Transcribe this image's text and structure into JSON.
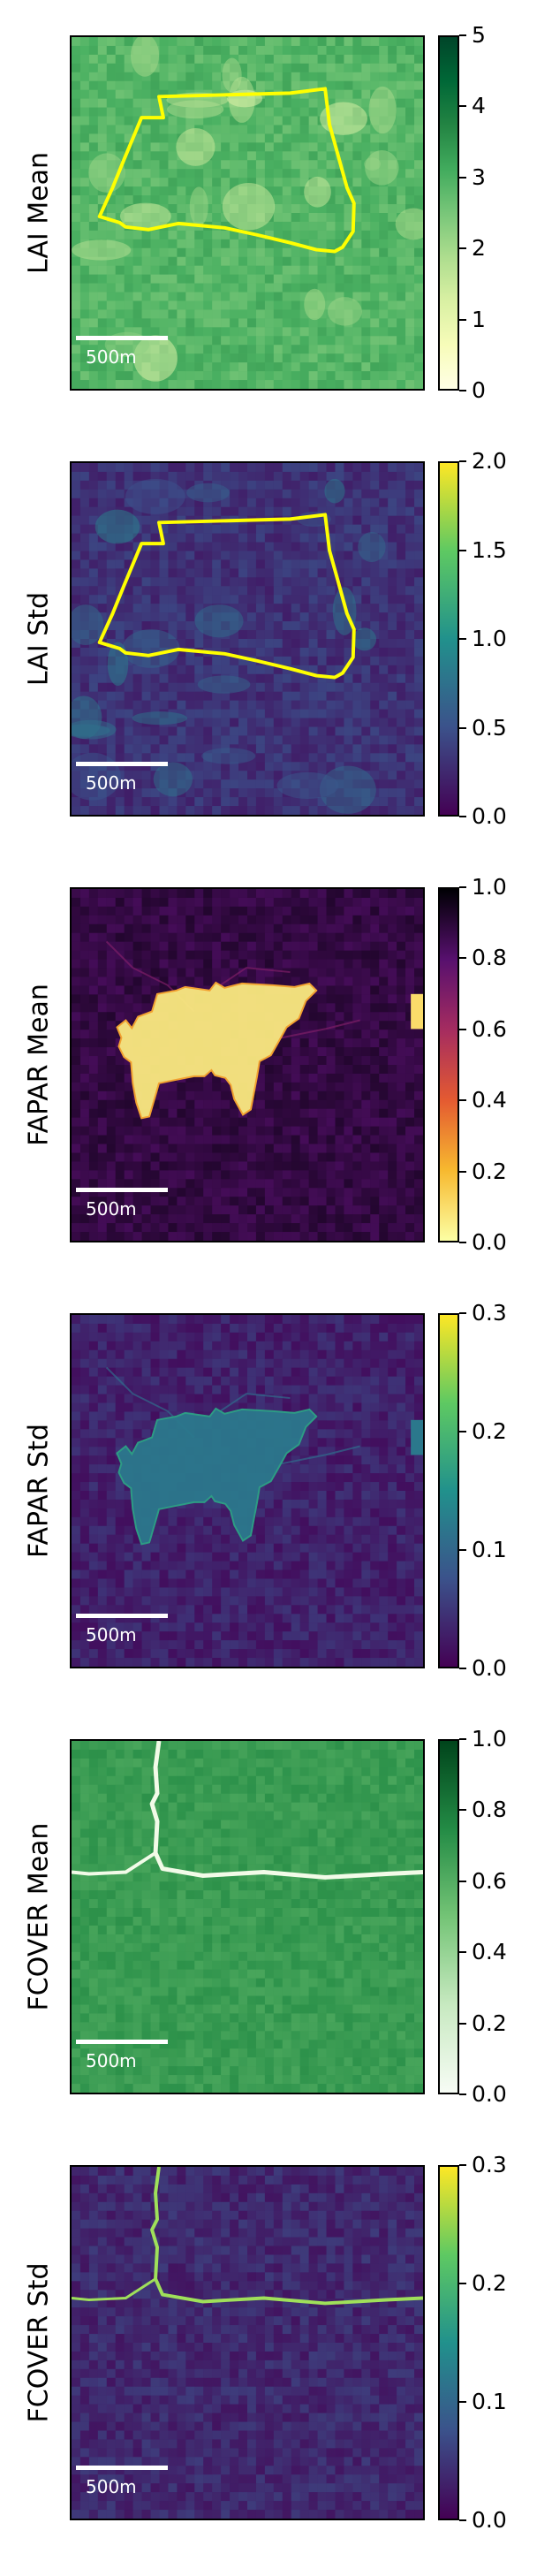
{
  "scale_bar_label": "500m",
  "chart_data": [
    {
      "type": "heatmap",
      "ylabel": "LAI Mean",
      "colormap": "YlGn",
      "colors": [
        "#ffffe5",
        "#f7fcb9",
        "#d9f0a3",
        "#addd8e",
        "#78c679",
        "#41ab5d",
        "#238443",
        "#006837",
        "#004529"
      ],
      "cbar_range": [
        0,
        5
      ],
      "ticks": [
        "0",
        "1",
        "2",
        "3",
        "4",
        "5"
      ],
      "boundary_overlay": true,
      "boundary_color": "#ffff00",
      "background_level": 0.58
    },
    {
      "type": "heatmap",
      "ylabel": "LAI Std",
      "colormap": "viridis",
      "colors": [
        "#440154",
        "#3b528b",
        "#21918c",
        "#5ec962",
        "#fde725"
      ],
      "cbar_range": [
        0.0,
        2.0
      ],
      "ticks": [
        "0.0",
        "0.5",
        "1.0",
        "1.5",
        "2.0"
      ],
      "boundary_overlay": true,
      "boundary_color": "#ffff00",
      "background_level": 0.15
    },
    {
      "type": "heatmap",
      "ylabel": "FAPAR Mean",
      "colormap": "inferno_r",
      "colors": [
        "#fcffa4",
        "#f7b92f",
        "#e45a31",
        "#a52c60",
        "#57106e",
        "#000004"
      ],
      "cbar_range": [
        0.0,
        1.0
      ],
      "ticks": [
        "0.0",
        "0.2",
        "0.4",
        "0.6",
        "0.8",
        "1.0"
      ],
      "boundary_overlay": false,
      "background_level": 0.88
    },
    {
      "type": "heatmap",
      "ylabel": "FAPAR Std",
      "colormap": "viridis",
      "colors": [
        "#440154",
        "#3b528b",
        "#21918c",
        "#5ec962",
        "#fde725"
      ],
      "cbar_range": [
        0.0,
        0.3
      ],
      "ticks": [
        "0.0",
        "0.1",
        "0.2",
        "0.3"
      ],
      "boundary_overlay": false,
      "background_level": 0.1
    },
    {
      "type": "heatmap",
      "ylabel": "FCOVER Mean",
      "colormap": "Greens",
      "colors": [
        "#f7fcf5",
        "#c7e9c0",
        "#74c476",
        "#238b45",
        "#00441b"
      ],
      "cbar_range": [
        0.0,
        1.0
      ],
      "ticks": [
        "0.0",
        "0.2",
        "0.4",
        "0.6",
        "0.8",
        "1.0"
      ],
      "boundary_overlay": false,
      "background_level": 0.68
    },
    {
      "type": "heatmap",
      "ylabel": "FCOVER Std",
      "colormap": "viridis",
      "colors": [
        "#440154",
        "#3b528b",
        "#21918c",
        "#5ec962",
        "#fde725"
      ],
      "cbar_range": [
        0.0,
        0.3
      ],
      "ticks": [
        "0.0",
        "0.1",
        "0.2",
        "0.3"
      ],
      "boundary_overlay": false,
      "background_level": 0.12
    }
  ]
}
